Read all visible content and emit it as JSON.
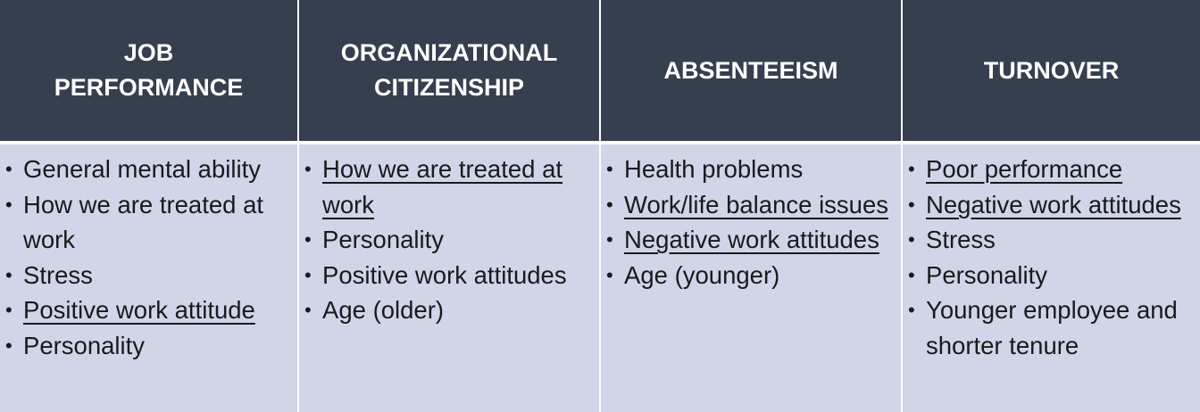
{
  "columns": [
    {
      "header_lines": [
        "JOB",
        "PERFORMANCE"
      ],
      "items": [
        {
          "text": "General mental ability",
          "underline": false
        },
        {
          "text": "How we are treated at work",
          "underline": false
        },
        {
          "text": "Stress",
          "underline": false
        },
        {
          "text": "Positive work attitude",
          "underline": true
        },
        {
          "text": "Personality",
          "underline": false
        }
      ]
    },
    {
      "header_lines": [
        "ORGANIZATIONAL",
        "CITIZENSHIP"
      ],
      "items": [
        {
          "text": "How we are treated at work",
          "underline": true
        },
        {
          "text": "Personality",
          "underline": false
        },
        {
          "text": "Positive work attitudes",
          "underline": false
        },
        {
          "text": "Age (older)",
          "underline": false
        }
      ]
    },
    {
      "header_lines": [
        "ABSENTEEISM"
      ],
      "items": [
        {
          "text": "Health problems",
          "underline": false
        },
        {
          "text": "Work/life balance issues",
          "underline": true
        },
        {
          "text": "Negative work attitudes",
          "underline": true
        },
        {
          "text": "Age (younger)",
          "underline": false
        }
      ]
    },
    {
      "header_lines": [
        "TURNOVER"
      ],
      "items": [
        {
          "text": "Poor performance",
          "underline": true
        },
        {
          "text": "Negative work attitudes",
          "underline": true
        },
        {
          "text": "Stress",
          "underline": false
        },
        {
          "text": "Personality",
          "underline": false
        },
        {
          "text": "Younger employee and shorter tenure",
          "underline": false
        }
      ]
    }
  ],
  "colors": {
    "header_bg": "#363f4f",
    "header_text": "#ffffff",
    "body_bg": "#d0d5e8",
    "body_text": "#1a1a1a"
  }
}
